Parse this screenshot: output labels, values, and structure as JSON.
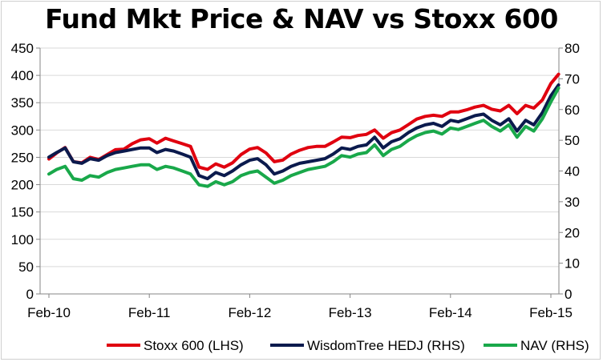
{
  "chart_data": {
    "type": "line",
    "title": "Fund Mkt Price & NAV vs Stoxx 600",
    "xlabel": "",
    "ylabel_left": "",
    "ylabel_right": "",
    "x_ticks": [
      "Feb-10",
      "Feb-11",
      "Feb-12",
      "Feb-13",
      "Feb-14",
      "Feb-15"
    ],
    "y_left": {
      "min": 0,
      "max": 450,
      "step": 50,
      "ticks": [
        "0",
        "50",
        "100",
        "150",
        "200",
        "250",
        "300",
        "350",
        "400",
        "450"
      ]
    },
    "y_right": {
      "min": 0,
      "max": 80,
      "step": 10,
      "ticks": [
        "0",
        "10",
        "20",
        "30",
        "40",
        "50",
        "60",
        "70",
        "80"
      ]
    },
    "grid": true,
    "legend_position": "bottom",
    "series": [
      {
        "name": "Stoxx 600 (LHS)",
        "axis": "left",
        "color": "#e0000f",
        "points": [
          [
            "2010-02-01",
            247
          ],
          [
            "2010-03-01",
            258
          ],
          [
            "2010-04-01",
            268
          ],
          [
            "2010-05-01",
            242
          ],
          [
            "2010-06-01",
            240
          ],
          [
            "2010-07-01",
            250
          ],
          [
            "2010-08-01",
            246
          ],
          [
            "2010-09-01",
            255
          ],
          [
            "2010-10-01",
            264
          ],
          [
            "2010-11-01",
            265
          ],
          [
            "2010-12-01",
            275
          ],
          [
            "2011-01-01",
            282
          ],
          [
            "2011-02-01",
            284
          ],
          [
            "2011-03-01",
            276
          ],
          [
            "2011-04-01",
            285
          ],
          [
            "2011-05-01",
            280
          ],
          [
            "2011-06-01",
            275
          ],
          [
            "2011-07-01",
            270
          ],
          [
            "2011-08-01",
            232
          ],
          [
            "2011-09-01",
            228
          ],
          [
            "2011-10-01",
            238
          ],
          [
            "2011-11-01",
            232
          ],
          [
            "2011-12-01",
            240
          ],
          [
            "2012-01-01",
            255
          ],
          [
            "2012-02-01",
            265
          ],
          [
            "2012-03-01",
            268
          ],
          [
            "2012-04-01",
            258
          ],
          [
            "2012-05-01",
            242
          ],
          [
            "2012-06-01",
            245
          ],
          [
            "2012-07-01",
            256
          ],
          [
            "2012-08-01",
            263
          ],
          [
            "2012-09-01",
            268
          ],
          [
            "2012-10-01",
            270
          ],
          [
            "2012-11-01",
            270
          ],
          [
            "2012-12-01",
            278
          ],
          [
            "2013-01-01",
            287
          ],
          [
            "2013-02-01",
            286
          ],
          [
            "2013-03-01",
            290
          ],
          [
            "2013-04-01",
            292
          ],
          [
            "2013-05-01",
            300
          ],
          [
            "2013-06-01",
            285
          ],
          [
            "2013-07-01",
            295
          ],
          [
            "2013-08-01",
            300
          ],
          [
            "2013-09-01",
            310
          ],
          [
            "2013-10-01",
            320
          ],
          [
            "2013-11-01",
            325
          ],
          [
            "2013-12-01",
            327
          ],
          [
            "2014-01-01",
            325
          ],
          [
            "2014-02-01",
            333
          ],
          [
            "2014-03-01",
            333
          ],
          [
            "2014-04-01",
            337
          ],
          [
            "2014-05-01",
            342
          ],
          [
            "2014-06-01",
            345
          ],
          [
            "2014-07-01",
            338
          ],
          [
            "2014-08-01",
            335
          ],
          [
            "2014-09-01",
            345
          ],
          [
            "2014-10-01",
            330
          ],
          [
            "2014-11-01",
            345
          ],
          [
            "2014-12-01",
            340
          ],
          [
            "2015-01-01",
            355
          ],
          [
            "2015-02-01",
            385
          ],
          [
            "2015-03-01",
            402
          ]
        ]
      },
      {
        "name": "WisdomTree HEDJ (RHS)",
        "axis": "right",
        "color": "#0b1a4d",
        "points": [
          [
            "2010-02-01",
            44.5
          ],
          [
            "2010-03-01",
            46.0
          ],
          [
            "2010-04-01",
            47.5
          ],
          [
            "2010-05-01",
            43.0
          ],
          [
            "2010-06-01",
            42.5
          ],
          [
            "2010-07-01",
            44.0
          ],
          [
            "2010-08-01",
            43.5
          ],
          [
            "2010-09-01",
            45.0
          ],
          [
            "2010-10-01",
            46.0
          ],
          [
            "2010-11-01",
            46.5
          ],
          [
            "2010-12-01",
            47.0
          ],
          [
            "2011-01-01",
            47.5
          ],
          [
            "2011-02-01",
            47.5
          ],
          [
            "2011-03-01",
            46.0
          ],
          [
            "2011-04-01",
            47.0
          ],
          [
            "2011-05-01",
            46.5
          ],
          [
            "2011-06-01",
            45.5
          ],
          [
            "2011-07-01",
            44.5
          ],
          [
            "2011-08-01",
            38.5
          ],
          [
            "2011-09-01",
            37.5
          ],
          [
            "2011-10-01",
            39.5
          ],
          [
            "2011-11-01",
            38.5
          ],
          [
            "2011-12-01",
            40.0
          ],
          [
            "2012-01-01",
            42.0
          ],
          [
            "2012-02-01",
            43.5
          ],
          [
            "2012-03-01",
            44.0
          ],
          [
            "2012-04-01",
            42.0
          ],
          [
            "2012-05-01",
            39.0
          ],
          [
            "2012-06-01",
            40.0
          ],
          [
            "2012-07-01",
            41.5
          ],
          [
            "2012-08-01",
            42.5
          ],
          [
            "2012-09-01",
            43.0
          ],
          [
            "2012-10-01",
            43.5
          ],
          [
            "2012-11-01",
            44.0
          ],
          [
            "2012-12-01",
            45.5
          ],
          [
            "2013-01-01",
            47.5
          ],
          [
            "2013-02-01",
            47.0
          ],
          [
            "2013-03-01",
            48.0
          ],
          [
            "2013-04-01",
            48.5
          ],
          [
            "2013-05-01",
            51.0
          ],
          [
            "2013-06-01",
            47.5
          ],
          [
            "2013-07-01",
            49.5
          ],
          [
            "2013-08-01",
            50.5
          ],
          [
            "2013-09-01",
            52.5
          ],
          [
            "2013-10-01",
            54.0
          ],
          [
            "2013-11-01",
            55.0
          ],
          [
            "2013-12-01",
            55.5
          ],
          [
            "2014-01-01",
            54.5
          ],
          [
            "2014-02-01",
            56.5
          ],
          [
            "2014-03-01",
            56.0
          ],
          [
            "2014-04-01",
            57.0
          ],
          [
            "2014-05-01",
            58.0
          ],
          [
            "2014-06-01",
            58.5
          ],
          [
            "2014-07-01",
            56.5
          ],
          [
            "2014-08-01",
            55.0
          ],
          [
            "2014-09-01",
            57.0
          ],
          [
            "2014-10-01",
            53.0
          ],
          [
            "2014-11-01",
            56.5
          ],
          [
            "2014-12-01",
            55.0
          ],
          [
            "2015-01-01",
            59.0
          ],
          [
            "2015-02-01",
            64.5
          ],
          [
            "2015-03-01",
            68.0
          ]
        ]
      },
      {
        "name": "NAV (RHS)",
        "axis": "right",
        "color": "#19a84a",
        "points": [
          [
            "2010-02-01",
            39.0
          ],
          [
            "2010-03-01",
            40.5
          ],
          [
            "2010-04-01",
            41.5
          ],
          [
            "2010-05-01",
            37.5
          ],
          [
            "2010-06-01",
            37.0
          ],
          [
            "2010-07-01",
            38.5
          ],
          [
            "2010-08-01",
            38.0
          ],
          [
            "2010-09-01",
            39.5
          ],
          [
            "2010-10-01",
            40.5
          ],
          [
            "2010-11-01",
            41.0
          ],
          [
            "2010-12-01",
            41.5
          ],
          [
            "2011-01-01",
            42.0
          ],
          [
            "2011-02-01",
            42.0
          ],
          [
            "2011-03-01",
            40.5
          ],
          [
            "2011-04-01",
            41.5
          ],
          [
            "2011-05-01",
            41.0
          ],
          [
            "2011-06-01",
            40.0
          ],
          [
            "2011-07-01",
            39.0
          ],
          [
            "2011-08-01",
            35.5
          ],
          [
            "2011-09-01",
            35.0
          ],
          [
            "2011-10-01",
            36.5
          ],
          [
            "2011-11-01",
            35.5
          ],
          [
            "2011-12-01",
            36.5
          ],
          [
            "2012-01-01",
            38.5
          ],
          [
            "2012-02-01",
            39.5
          ],
          [
            "2012-03-01",
            40.0
          ],
          [
            "2012-04-01",
            38.0
          ],
          [
            "2012-05-01",
            36.0
          ],
          [
            "2012-06-01",
            37.0
          ],
          [
            "2012-07-01",
            38.5
          ],
          [
            "2012-08-01",
            39.5
          ],
          [
            "2012-09-01",
            40.5
          ],
          [
            "2012-10-01",
            41.0
          ],
          [
            "2012-11-01",
            41.5
          ],
          [
            "2012-12-01",
            43.0
          ],
          [
            "2013-01-01",
            45.0
          ],
          [
            "2013-02-01",
            44.5
          ],
          [
            "2013-03-01",
            45.5
          ],
          [
            "2013-04-01",
            46.0
          ],
          [
            "2013-05-01",
            48.5
          ],
          [
            "2013-06-01",
            45.0
          ],
          [
            "2013-07-01",
            47.0
          ],
          [
            "2013-08-01",
            48.0
          ],
          [
            "2013-09-01",
            50.0
          ],
          [
            "2013-10-01",
            51.5
          ],
          [
            "2013-11-01",
            52.5
          ],
          [
            "2013-12-01",
            53.0
          ],
          [
            "2014-01-01",
            52.0
          ],
          [
            "2014-02-01",
            54.0
          ],
          [
            "2014-03-01",
            53.5
          ],
          [
            "2014-04-01",
            54.5
          ],
          [
            "2014-05-01",
            55.5
          ],
          [
            "2014-06-01",
            56.5
          ],
          [
            "2014-07-01",
            54.5
          ],
          [
            "2014-08-01",
            53.0
          ],
          [
            "2014-09-01",
            55.0
          ],
          [
            "2014-10-01",
            51.0
          ],
          [
            "2014-11-01",
            54.5
          ],
          [
            "2014-12-01",
            53.0
          ],
          [
            "2015-01-01",
            57.0
          ],
          [
            "2015-02-01",
            62.5
          ],
          [
            "2015-03-01",
            67.0
          ]
        ]
      }
    ]
  }
}
